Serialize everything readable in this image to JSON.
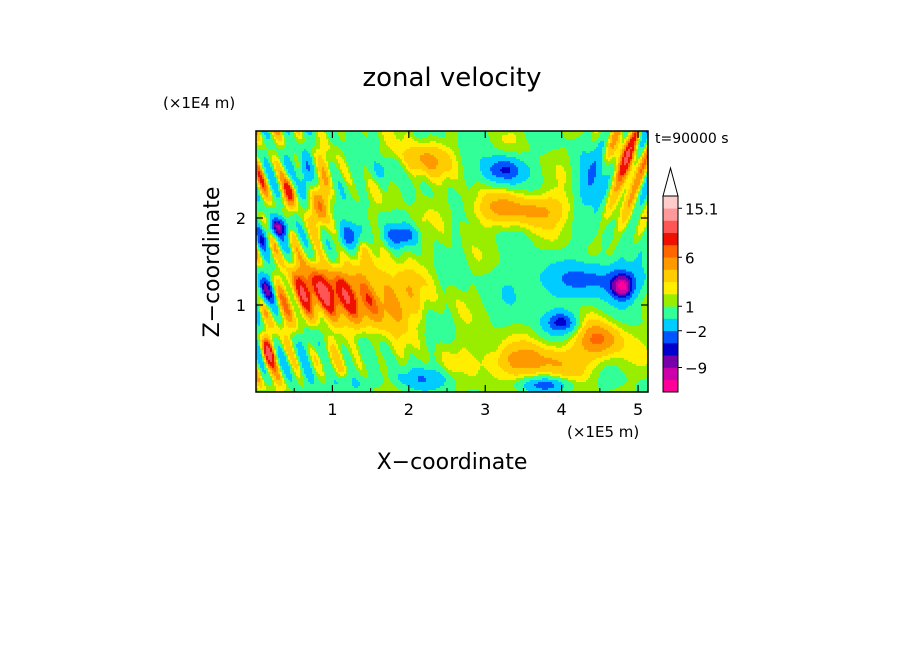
{
  "chart_data": {
    "type": "heatmap",
    "title": "zonal velocity",
    "xlabel": "X−coordinate",
    "ylabel": "Z−coordinate",
    "x_unit": "(×1E5 m)",
    "y_unit": "(×1E4 m)",
    "time_label": "t=90000 s",
    "xlim": [
      0,
      5.13
    ],
    "ylim": [
      0,
      3.0
    ],
    "x_ticks": [
      "1",
      "2",
      "3",
      "4",
      "5"
    ],
    "y_ticks": [
      "1",
      "2"
    ],
    "colorbar": {
      "tick_labels": [
        "15.1",
        "6",
        "1",
        "−2",
        "−9"
      ],
      "colors": [
        "#ff0099",
        "#cc00aa",
        "#7700aa",
        "#0000cc",
        "#0055ff",
        "#00ccff",
        "#33ff99",
        "#99ee00",
        "#ffee00",
        "#ffcc00",
        "#ff9900",
        "#ff6600",
        "#ee1100",
        "#ff5555",
        "#ff9999",
        "#ffcccc"
      ],
      "extend": "max"
    },
    "features": [
      {
        "x": 0.1,
        "z": 1.15,
        "sx": 0.12,
        "sz": 0.16,
        "v": -7
      },
      {
        "x": 0.15,
        "z": 0.45,
        "sx": 0.1,
        "sz": 0.2,
        "v": 6
      },
      {
        "x": 0.1,
        "z": 1.75,
        "sx": 0.1,
        "sz": 0.12,
        "v": -4
      },
      {
        "x": 0.3,
        "z": 1.9,
        "sx": 0.15,
        "sz": 0.1,
        "v": -7
      },
      {
        "x": 0.45,
        "z": 2.3,
        "sx": 0.1,
        "sz": 0.2,
        "v": 5
      },
      {
        "x": 0.65,
        "z": 2.5,
        "sx": 0.08,
        "sz": 0.3,
        "v": -5
      },
      {
        "x": 0.85,
        "z": 2.2,
        "sx": 0.1,
        "sz": 0.3,
        "v": 5
      },
      {
        "x": 1.25,
        "z": 1.8,
        "sx": 0.15,
        "sz": 0.15,
        "v": -7
      },
      {
        "x": 1.7,
        "z": 2.55,
        "sx": 0.25,
        "sz": 0.15,
        "v": -3
      },
      {
        "x": 2.15,
        "z": 2.65,
        "sx": 0.35,
        "sz": 0.2,
        "v": 4
      },
      {
        "x": 1.9,
        "z": 1.8,
        "sx": 0.2,
        "sz": 0.12,
        "v": -7
      },
      {
        "x": 1.4,
        "z": 1.1,
        "sx": 0.7,
        "sz": 0.4,
        "v": 4
      },
      {
        "x": 1.75,
        "z": 1.0,
        "sx": 0.35,
        "sz": 0.25,
        "v": 2
      },
      {
        "x": 0.8,
        "z": 1.15,
        "sx": 0.4,
        "sz": 0.3,
        "v": 6
      },
      {
        "x": 2.7,
        "z": 1.2,
        "sx": 0.35,
        "sz": 0.6,
        "v": 0
      },
      {
        "x": 3.25,
        "z": 2.55,
        "sx": 0.25,
        "sz": 0.15,
        "v": -8
      },
      {
        "x": 3.5,
        "z": 2.1,
        "sx": 0.7,
        "sz": 0.2,
        "v": 4
      },
      {
        "x": 3.6,
        "z": 1.2,
        "sx": 0.5,
        "sz": 0.3,
        "v": -2
      },
      {
        "x": 4.0,
        "z": 0.8,
        "sx": 0.2,
        "sz": 0.12,
        "v": -8
      },
      {
        "x": 4.5,
        "z": 1.3,
        "sx": 0.6,
        "sz": 0.2,
        "v": -6
      },
      {
        "x": 4.8,
        "z": 1.2,
        "sx": 0.15,
        "sz": 0.15,
        "v": -10
      },
      {
        "x": 3.6,
        "z": 0.35,
        "sx": 0.8,
        "sz": 0.2,
        "v": 4
      },
      {
        "x": 4.5,
        "z": 0.6,
        "sx": 0.3,
        "sz": 0.2,
        "v": 5
      },
      {
        "x": 4.4,
        "z": 2.4,
        "sx": 0.2,
        "sz": 0.35,
        "v": -5
      },
      {
        "x": 4.85,
        "z": 2.6,
        "sx": 0.2,
        "sz": 0.4,
        "v": 5
      },
      {
        "x": 2.2,
        "z": 0.15,
        "sx": 0.4,
        "sz": 0.12,
        "v": -4
      },
      {
        "x": 3.8,
        "z": 0.08,
        "sx": 0.3,
        "sz": 0.08,
        "v": -6
      },
      {
        "x": 1.2,
        "z": 0.1,
        "sx": 0.3,
        "sz": 0.1,
        "v": -2
      },
      {
        "x": 0.7,
        "z": 0.6,
        "sx": 0.2,
        "sz": 0.15,
        "v": -2
      }
    ]
  }
}
